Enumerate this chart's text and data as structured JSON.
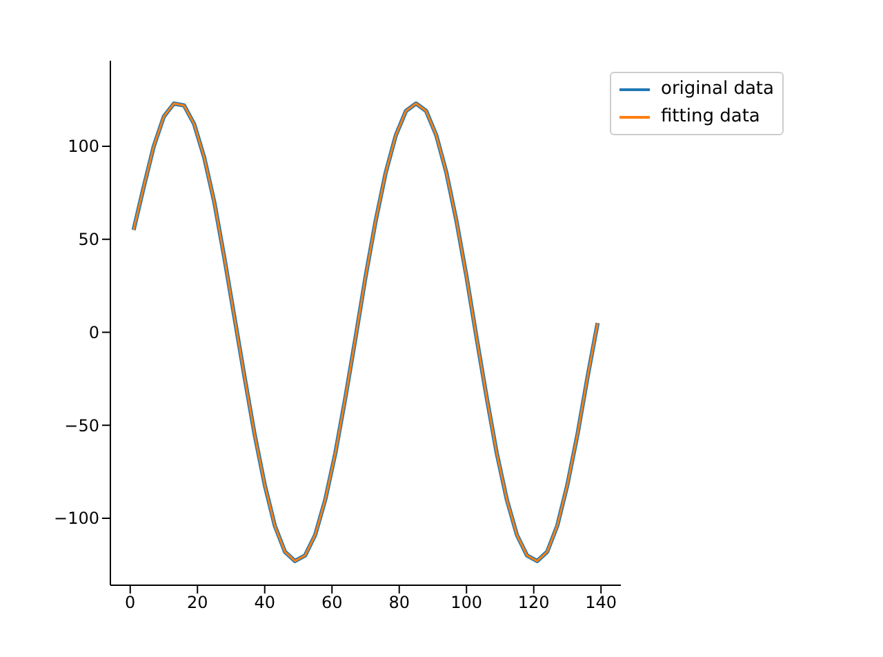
{
  "chart_data": {
    "type": "line",
    "x": [
      1,
      4,
      7,
      10,
      13,
      16,
      19,
      22,
      25,
      28,
      31,
      34,
      37,
      40,
      43,
      46,
      49,
      52,
      55,
      58,
      61,
      64,
      67,
      70,
      73,
      76,
      79,
      82,
      85,
      88,
      91,
      94,
      97,
      100,
      103,
      106,
      109,
      112,
      115,
      118,
      121,
      124,
      127,
      130,
      133,
      136,
      139
    ],
    "series": [
      {
        "name": "original data",
        "color": "#1f77b4",
        "values": [
          55,
          78,
          100,
          116,
          123,
          122,
          112,
          94,
          70,
          40,
          8,
          -24,
          -55,
          -82,
          -104,
          -118,
          -123,
          -120,
          -109,
          -90,
          -65,
          -35,
          -3,
          30,
          60,
          86,
          106,
          119,
          123,
          119,
          106,
          86,
          60,
          30,
          -3,
          -35,
          -65,
          -90,
          -109,
          -120,
          -123,
          -118,
          -104,
          -82,
          -55,
          -24,
          5
        ]
      },
      {
        "name": "fitting data",
        "color": "#ff7f0e",
        "values": [
          55,
          78,
          100,
          116,
          123,
          122,
          112,
          94,
          70,
          40,
          8,
          -24,
          -55,
          -82,
          -104,
          -118,
          -123,
          -120,
          -109,
          -90,
          -65,
          -35,
          -3,
          30,
          60,
          86,
          106,
          119,
          123,
          119,
          106,
          86,
          60,
          30,
          -3,
          -35,
          -65,
          -90,
          -109,
          -120,
          -123,
          -118,
          -104,
          -82,
          -55,
          -24,
          5
        ]
      }
    ],
    "xlim": [
      -5.9,
      145.9
    ],
    "xticks": [
      0,
      20,
      40,
      60,
      80,
      100,
      120,
      140
    ],
    "ylim": [
      -136,
      146
    ],
    "yticks": [
      -100,
      -50,
      0,
      50,
      100
    ],
    "grid": false,
    "legend": "top right",
    "marker": "none",
    "line_style": "solid"
  }
}
